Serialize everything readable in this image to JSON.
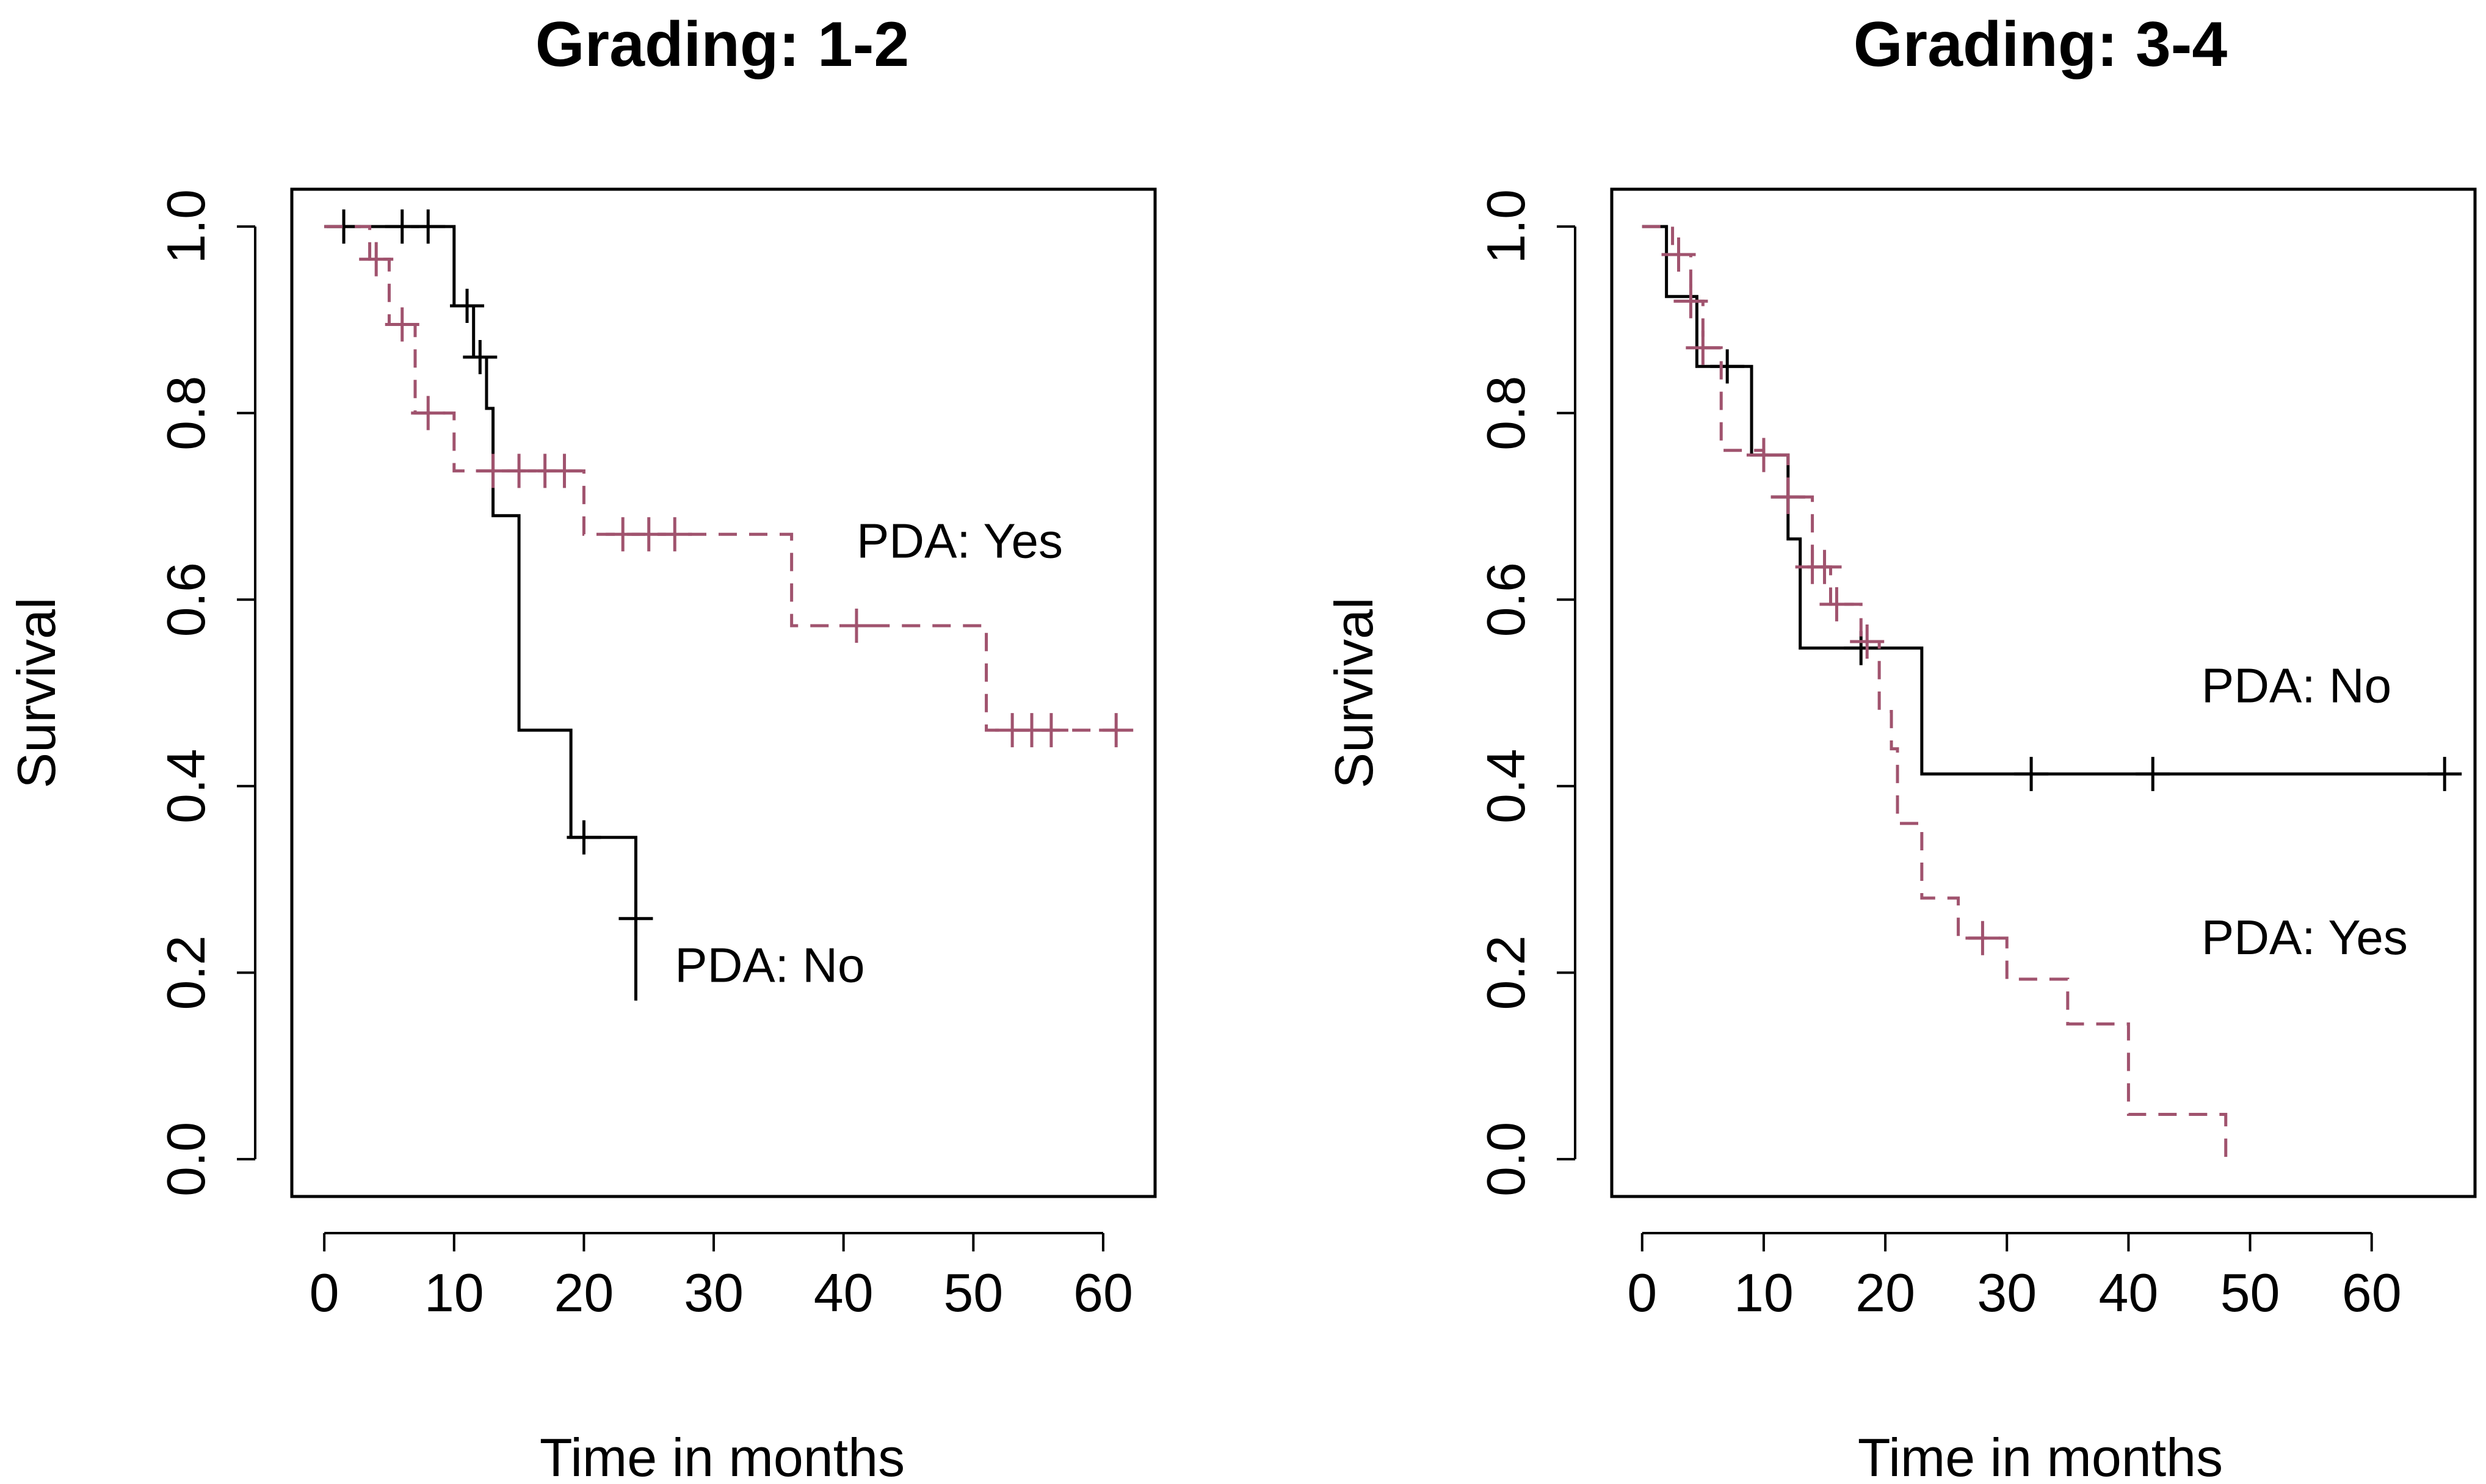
{
  "colors": {
    "pda_no": "#000000",
    "pda_yes": "#A0536E",
    "background": "#ffffff"
  },
  "chart_data": [
    {
      "type": "line",
      "subtype": "kaplan-meier",
      "title": "Grading: 1-2",
      "xlabel": "Time in months",
      "ylabel": "Survival",
      "xlim": [
        -2.5,
        64
      ],
      "ylim": [
        -0.04,
        1.04
      ],
      "xticks": [
        0,
        10,
        20,
        30,
        40,
        50,
        60
      ],
      "yticks": [
        "0.0",
        "0.2",
        "0.4",
        "0.6",
        "0.8",
        "1.0"
      ],
      "grid": false,
      "annotations": [
        {
          "id": "yes",
          "text": "PDA: Yes",
          "x": 41,
          "y": 0.645
        },
        {
          "id": "no",
          "text": "PDA: No",
          "x": 27,
          "y": 0.19
        }
      ],
      "series": [
        {
          "name": "PDA: No",
          "color_key": "pda_no",
          "dash": false,
          "steps": [
            [
              0,
              1.0
            ],
            [
              10,
              0.915
            ],
            [
              11.5,
              0.86
            ],
            [
              12.5,
              0.805
            ],
            [
              13,
              0.69
            ],
            [
              15,
              0.46
            ],
            [
              19,
              0.345
            ],
            [
              24,
              0.17
            ]
          ],
          "end": 24,
          "censors": [
            [
              1.5,
              1.0
            ],
            [
              6,
              1.0
            ],
            [
              8,
              1.0
            ],
            [
              11,
              0.915
            ],
            [
              12,
              0.86
            ],
            [
              20,
              0.345
            ],
            [
              24,
              0.258
            ]
          ]
        },
        {
          "name": "PDA: Yes",
          "color_key": "pda_yes",
          "dash": true,
          "steps": [
            [
              0,
              1.0
            ],
            [
              3.5,
              0.965
            ],
            [
              5,
              0.895
            ],
            [
              7,
              0.8
            ],
            [
              10,
              0.738
            ],
            [
              20,
              0.67
            ],
            [
              36,
              0.572
            ],
            [
              51,
              0.46
            ]
          ],
          "end": 61,
          "censors": [
            [
              4,
              0.965
            ],
            [
              6,
              0.895
            ],
            [
              8,
              0.8
            ],
            [
              13,
              0.738
            ],
            [
              15,
              0.738
            ],
            [
              17,
              0.738
            ],
            [
              18.5,
              0.738
            ],
            [
              23,
              0.67
            ],
            [
              25,
              0.67
            ],
            [
              27,
              0.67
            ],
            [
              41,
              0.572
            ],
            [
              53,
              0.46
            ],
            [
              54.5,
              0.46
            ],
            [
              56,
              0.46
            ],
            [
              61,
              0.46
            ]
          ]
        }
      ]
    },
    {
      "type": "line",
      "subtype": "kaplan-meier",
      "title": "Grading: 3-4",
      "xlabel": "Time in months",
      "ylabel": "Survival",
      "xlim": [
        -2.5,
        68.5
      ],
      "ylim": [
        -0.04,
        1.04
      ],
      "xticks": [
        0,
        10,
        20,
        30,
        40,
        50,
        60
      ],
      "yticks": [
        "0.0",
        "0.2",
        "0.4",
        "0.6",
        "0.8",
        "1.0"
      ],
      "grid": false,
      "annotations": [
        {
          "id": "no",
          "text": "PDA: No",
          "x": 46,
          "y": 0.49
        },
        {
          "id": "yes",
          "text": "PDA: Yes",
          "x": 46,
          "y": 0.22
        }
      ],
      "series": [
        {
          "name": "PDA: No",
          "color_key": "pda_no",
          "dash": false,
          "steps": [
            [
              0,
              1.0
            ],
            [
              2,
              0.925
            ],
            [
              4.5,
              0.85
            ],
            [
              9,
              0.755
            ],
            [
              12,
              0.665
            ],
            [
              13,
              0.548
            ],
            [
              23,
              0.413
            ]
          ],
          "end": 66,
          "censors": [
            [
              7,
              0.85
            ],
            [
              12,
              0.71
            ],
            [
              18,
              0.548
            ],
            [
              32,
              0.413
            ],
            [
              42,
              0.413
            ],
            [
              66,
              0.413
            ]
          ]
        },
        {
          "name": "PDA: Yes",
          "color_key": "pda_yes",
          "dash": true,
          "steps": [
            [
              0,
              1.0
            ],
            [
              2.5,
              0.97
            ],
            [
              4,
              0.92
            ],
            [
              5,
              0.87
            ],
            [
              6.5,
              0.76
            ],
            [
              10,
              0.755
            ],
            [
              12,
              0.71
            ],
            [
              14,
              0.635
            ],
            [
              15.5,
              0.595
            ],
            [
              18,
              0.555
            ],
            [
              19.5,
              0.48
            ],
            [
              20.5,
              0.44
            ],
            [
              21,
              0.36
            ],
            [
              23,
              0.28
            ],
            [
              26,
              0.237
            ],
            [
              30,
              0.193
            ],
            [
              35,
              0.145
            ],
            [
              40,
              0.048
            ],
            [
              48,
              0.0
            ]
          ],
          "end": 48,
          "censors": [
            [
              3,
              0.97
            ],
            [
              4,
              0.92
            ],
            [
              5,
              0.87
            ],
            [
              10,
              0.755
            ],
            [
              12,
              0.71
            ],
            [
              14,
              0.635
            ],
            [
              15,
              0.635
            ],
            [
              16,
              0.595
            ],
            [
              18.5,
              0.555
            ],
            [
              28,
              0.237
            ]
          ]
        }
      ]
    }
  ]
}
